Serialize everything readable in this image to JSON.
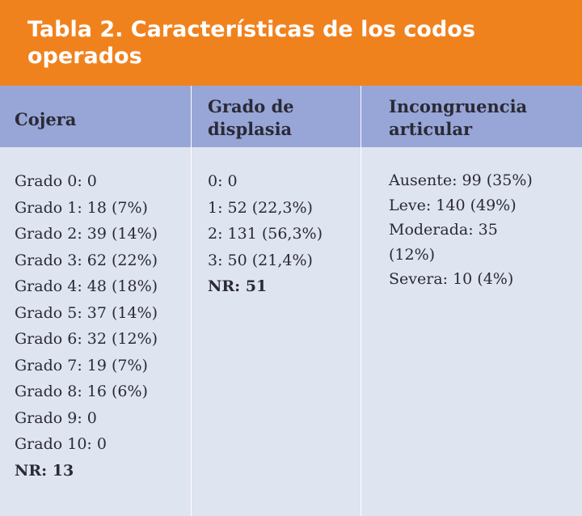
{
  "title": "Tabla 2. Características de los codos operados",
  "headers": {
    "cojera": "Cojera",
    "displasia": "Grado de displasia",
    "incongruencia": "Incongruencia articular"
  },
  "cojera": [
    "Grado 0: 0",
    "Grado 1: 18 (7%)",
    "Grado 2: 39 (14%)",
    "Grado 3: 62 (22%)",
    "Grado 4: 48 (18%)",
    "Grado 5: 37 (14%)",
    "Grado 6: 32 (12%)",
    "Grado 7: 19 (7%)",
    "Grado 8: 16 (6%)",
    "Grado 9: 0",
    "Grado 10: 0"
  ],
  "cojera_nr": "NR: 13",
  "displasia": [
    "0: 0",
    "1: 52 (22,3%)",
    "2: 131 (56,3%)",
    "3: 50 (21,4%)"
  ],
  "displasia_nr": "NR: 51",
  "incongruencia": [
    "Ausente: 99 (35%)",
    "Leve: 140 (49%)",
    "Moderada: 35 (12%)",
    "Severa: 10 (4%)"
  ],
  "colors": {
    "title_bar": "#f0821e",
    "header_row": "#97a6d6",
    "body": "#dfe4f1"
  }
}
